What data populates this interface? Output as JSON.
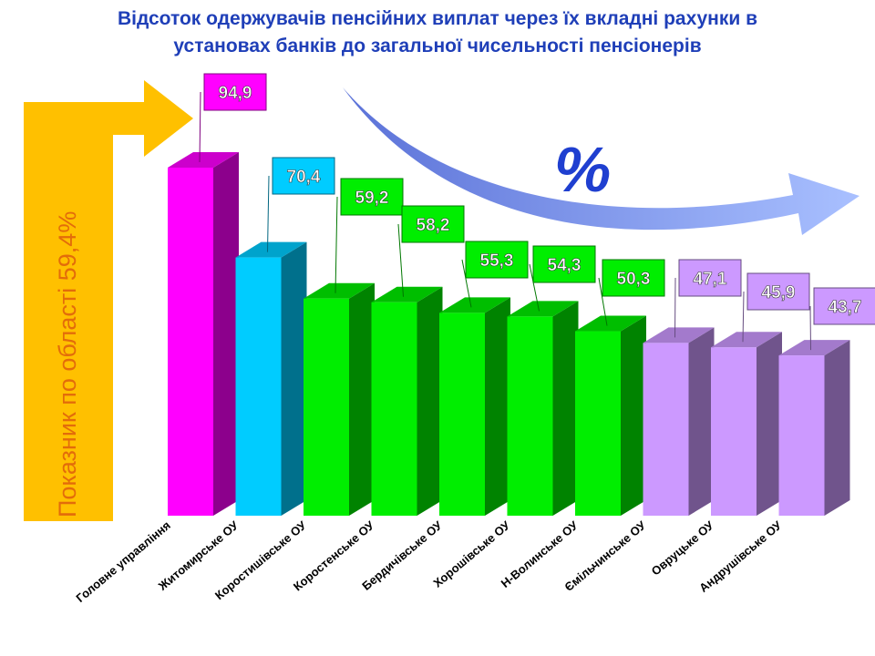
{
  "title_line1": "Відсоток одержувачів пенсійних виплат через їх вкладні рахунки в",
  "title_line2": "установах банків до загальної чисельності пенсіонерів",
  "banner_text": "Показник по області 59,4%",
  "percent_symbol": "%",
  "colors": {
    "title": "#1f3fb8",
    "banner": "#ffc000",
    "banner_text": "#e36c0a",
    "percent_blue": "#1f3fd0"
  },
  "chart_data": {
    "type": "bar",
    "title": "Відсоток одержувачів пенсійних виплат через їх вкладні рахунки в установах банків до загальної чисельності пенсіонерів",
    "categories": [
      "Головне управління",
      "Житомирське ОУ",
      "Коростишівське ОУ",
      "Коростенське ОУ",
      "Бердичівське ОУ",
      "Хорошівське ОУ",
      "Н-Волинське ОУ",
      "Ємільчинське ОУ",
      "Овруцьке ОУ",
      "Андрушівське ОУ"
    ],
    "values": [
      94.9,
      70.4,
      59.2,
      58.2,
      55.3,
      54.3,
      50.3,
      47.1,
      45.9,
      43.7
    ],
    "value_labels": [
      "94,9",
      "70,4",
      "59,2",
      "58,2",
      "55,3",
      "54,3",
      "50,3",
      "47,1",
      "45,9",
      "43,7"
    ],
    "bar_colors": [
      "#ff00ff",
      "#00ccff",
      "#00ee00",
      "#00ee00",
      "#00ee00",
      "#00ee00",
      "#00ee00",
      "#cc99ff",
      "#cc99ff",
      "#cc99ff"
    ],
    "grid": false,
    "legend": "none",
    "reference_value": 59.4
  }
}
